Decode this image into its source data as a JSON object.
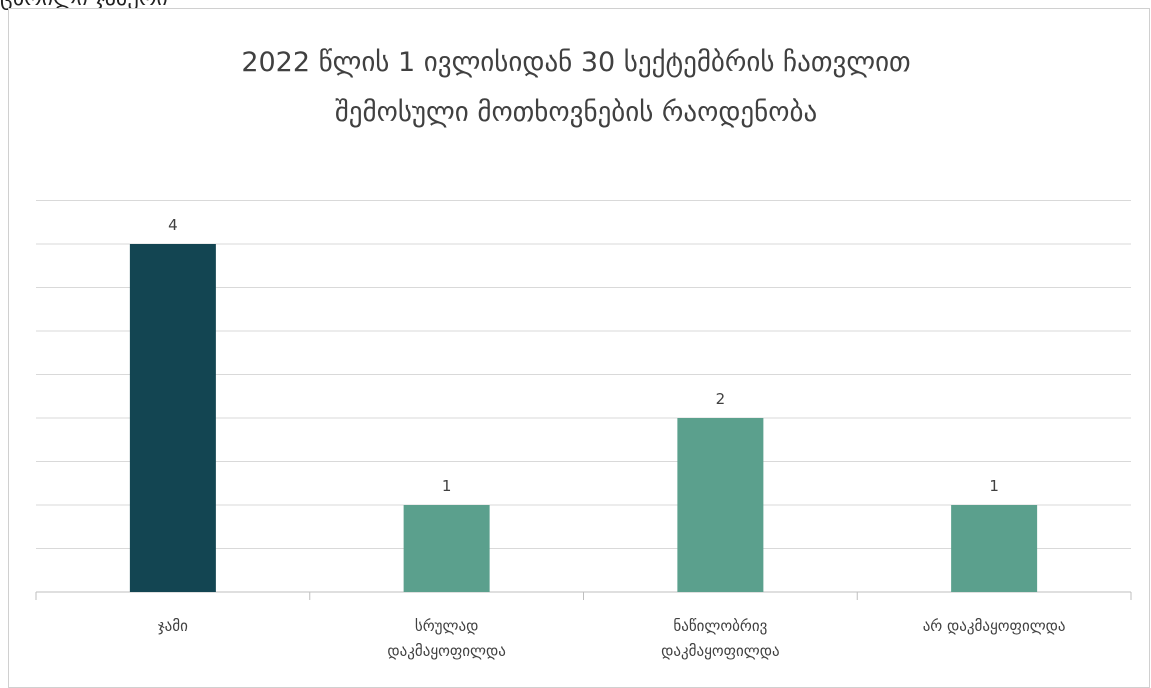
{
  "top_fragment": "ცხრილი ჯამური",
  "chart_data": {
    "type": "bar",
    "title": "2022 წლის 1 ივლისიდან 30 სექტემბრის ჩათვლით შემოსული მოთხოვნების რაოდენობა",
    "title_lines": [
      "2022 წლის 1 ივლისიდან 30 სექტემბრის ჩათვლით",
      "შემოსული მოთხოვნების რაოდენობა"
    ],
    "categories": [
      [
        "ჯამი"
      ],
      [
        "სრულად",
        "დაკმაყოფილდა"
      ],
      [
        "ნაწილობრივ",
        "დაკმაყოფილდა"
      ],
      [
        "არ დაკმაყოფილდა"
      ]
    ],
    "values": [
      4,
      1,
      2,
      1
    ],
    "data_labels": [
      "4",
      "1",
      "2",
      "1"
    ],
    "bar_colors": [
      "#134552",
      "#5ba08d",
      "#5ba08d",
      "#5ba08d"
    ],
    "ylim": [
      0,
      4.5
    ],
    "grid_step": 0.5,
    "grid": true,
    "y_axis_visible": false,
    "xlabel": "",
    "ylabel": ""
  },
  "colors": {
    "gridline": "#d9d9d9",
    "axis": "#bfbfbf",
    "text": "#404040"
  }
}
